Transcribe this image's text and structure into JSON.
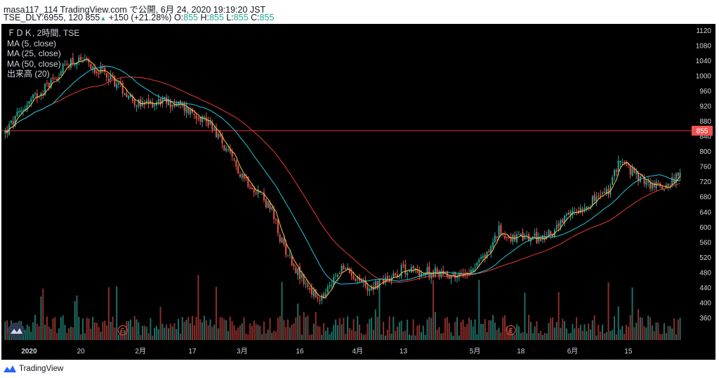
{
  "header": {
    "line1": "masa117_114 TradingView.com で公開, 6月 24, 2020 19:19:20 JST",
    "symbol": "TSE_DLY:6955, 120",
    "price": "855",
    "change_arrow": "▲",
    "change": "+150 (+21.28%)",
    "o_label": "O:",
    "o_value": "855",
    "h_label": "H:",
    "h_value": "855",
    "l_label": "L:",
    "l_value": "855",
    "c_label": "C:",
    "c_value": "855"
  },
  "legend": {
    "title": "ＦＤＫ, 2時間, TSE",
    "ma5": "MA (5, close)",
    "ma25": "MA (25, close)",
    "ma50": "MA (50, close)",
    "volume": "出来高 (20)"
  },
  "footer": {
    "brand": "TradingView"
  },
  "colors": {
    "up": "#26a69a",
    "down": "#ef5350",
    "ma5": "#f2c94c",
    "ma25": "#26c6da",
    "ma50": "#e53935",
    "price_line": "#e53935",
    "price_tag_bg": "#ef5350",
    "axis_text": "#d1d4dc",
    "background": "#000000"
  },
  "chart_data": {
    "type": "candlestick",
    "y_ticks": [
      "1120",
      "1080",
      "1040",
      "1000",
      "960",
      "920",
      "880",
      "840",
      "800",
      "760",
      "720",
      "680",
      "640",
      "600",
      "560",
      "520",
      "480",
      "440",
      "400",
      "360"
    ],
    "ylim": [
      320,
      1130
    ],
    "last_price": 855,
    "last_price_label": "855",
    "x_labels": [
      {
        "label": "2020",
        "bold": true,
        "bar": 12
      },
      {
        "label": "20",
        "bar": 38
      },
      {
        "label": "2月",
        "bar": 68
      },
      {
        "label": "17",
        "bar": 94
      },
      {
        "label": "3月",
        "bar": 119
      },
      {
        "label": "16",
        "bar": 148
      },
      {
        "label": "4月",
        "bar": 177
      },
      {
        "label": "13",
        "bar": 200
      },
      {
        "label": "5月",
        "bar": 236
      },
      {
        "label": "18",
        "bar": 259
      },
      {
        "label": "6月",
        "bar": 285
      },
      {
        "label": "15",
        "bar": 313
      }
    ],
    "earnings_markers": [
      {
        "label": "E",
        "bar": 59
      },
      {
        "label": "E",
        "bar": 254
      }
    ],
    "bar_count": 340,
    "anchors": [
      [
        0,
        850
      ],
      [
        10,
        920
      ],
      [
        22,
        980
      ],
      [
        33,
        1040
      ],
      [
        42,
        1030
      ],
      [
        52,
        1000
      ],
      [
        60,
        960
      ],
      [
        68,
        920
      ],
      [
        78,
        935
      ],
      [
        88,
        920
      ],
      [
        96,
        900
      ],
      [
        104,
        870
      ],
      [
        110,
        810
      ],
      [
        116,
        760
      ],
      [
        122,
        720
      ],
      [
        128,
        690
      ],
      [
        134,
        640
      ],
      [
        138,
        570
      ],
      [
        143,
        520
      ],
      [
        148,
        470
      ],
      [
        154,
        430
      ],
      [
        158,
        400
      ],
      [
        163,
        440
      ],
      [
        168,
        490
      ],
      [
        174,
        480
      ],
      [
        178,
        460
      ],
      [
        182,
        440
      ],
      [
        187,
        450
      ],
      [
        193,
        470
      ],
      [
        200,
        490
      ],
      [
        210,
        480
      ],
      [
        220,
        480
      ],
      [
        228,
        470
      ],
      [
        236,
        500
      ],
      [
        242,
        530
      ],
      [
        248,
        590
      ],
      [
        255,
        570
      ],
      [
        262,
        570
      ],
      [
        270,
        570
      ],
      [
        278,
        600
      ],
      [
        285,
        640
      ],
      [
        292,
        660
      ],
      [
        298,
        680
      ],
      [
        304,
        700
      ],
      [
        308,
        780
      ],
      [
        312,
        760
      ],
      [
        318,
        730
      ],
      [
        325,
        710
      ],
      [
        332,
        710
      ],
      [
        336,
        730
      ],
      [
        339,
        735
      ]
    ]
  }
}
